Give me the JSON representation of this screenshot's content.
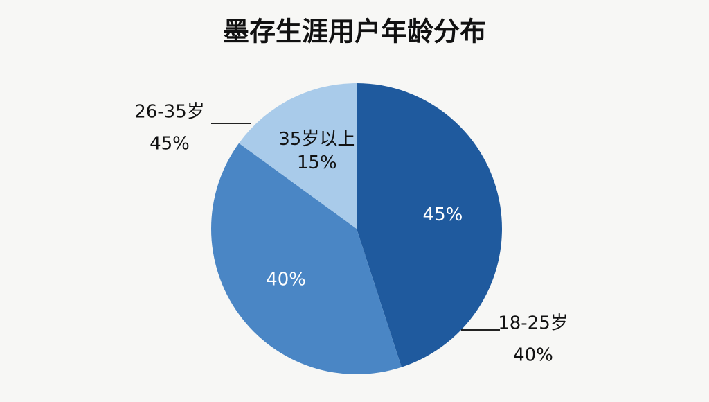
{
  "chart_data": {
    "type": "pie",
    "title": "墨存生涯用户年龄分布",
    "categories": [
      "26-35岁",
      "18-25岁",
      "35岁以上"
    ],
    "values": [
      45,
      40,
      15
    ],
    "value_labels": [
      "45%",
      "40%",
      "15%"
    ],
    "colors": [
      "#1f5a9e",
      "#4a86c5",
      "#a9cbea"
    ]
  }
}
